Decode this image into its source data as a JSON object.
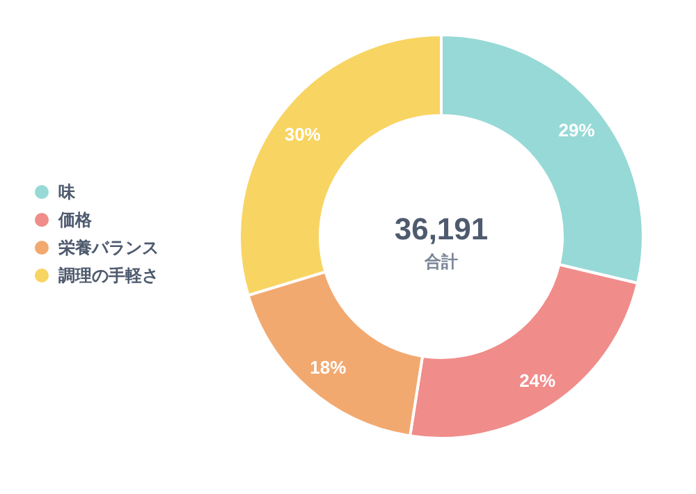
{
  "chart_data": {
    "type": "donut",
    "categories": [
      "味",
      "価格",
      "栄養バランス",
      "調理の手軽さ"
    ],
    "values": [
      29,
      24,
      18,
      30
    ],
    "value_labels": [
      "29%",
      "24%",
      "18%",
      "30%"
    ],
    "colors": [
      "#97d9d6",
      "#f08c8a",
      "#f2a970",
      "#f8d462"
    ],
    "annotations": [
      "36,191",
      "合計"
    ],
    "legend": "left"
  }
}
